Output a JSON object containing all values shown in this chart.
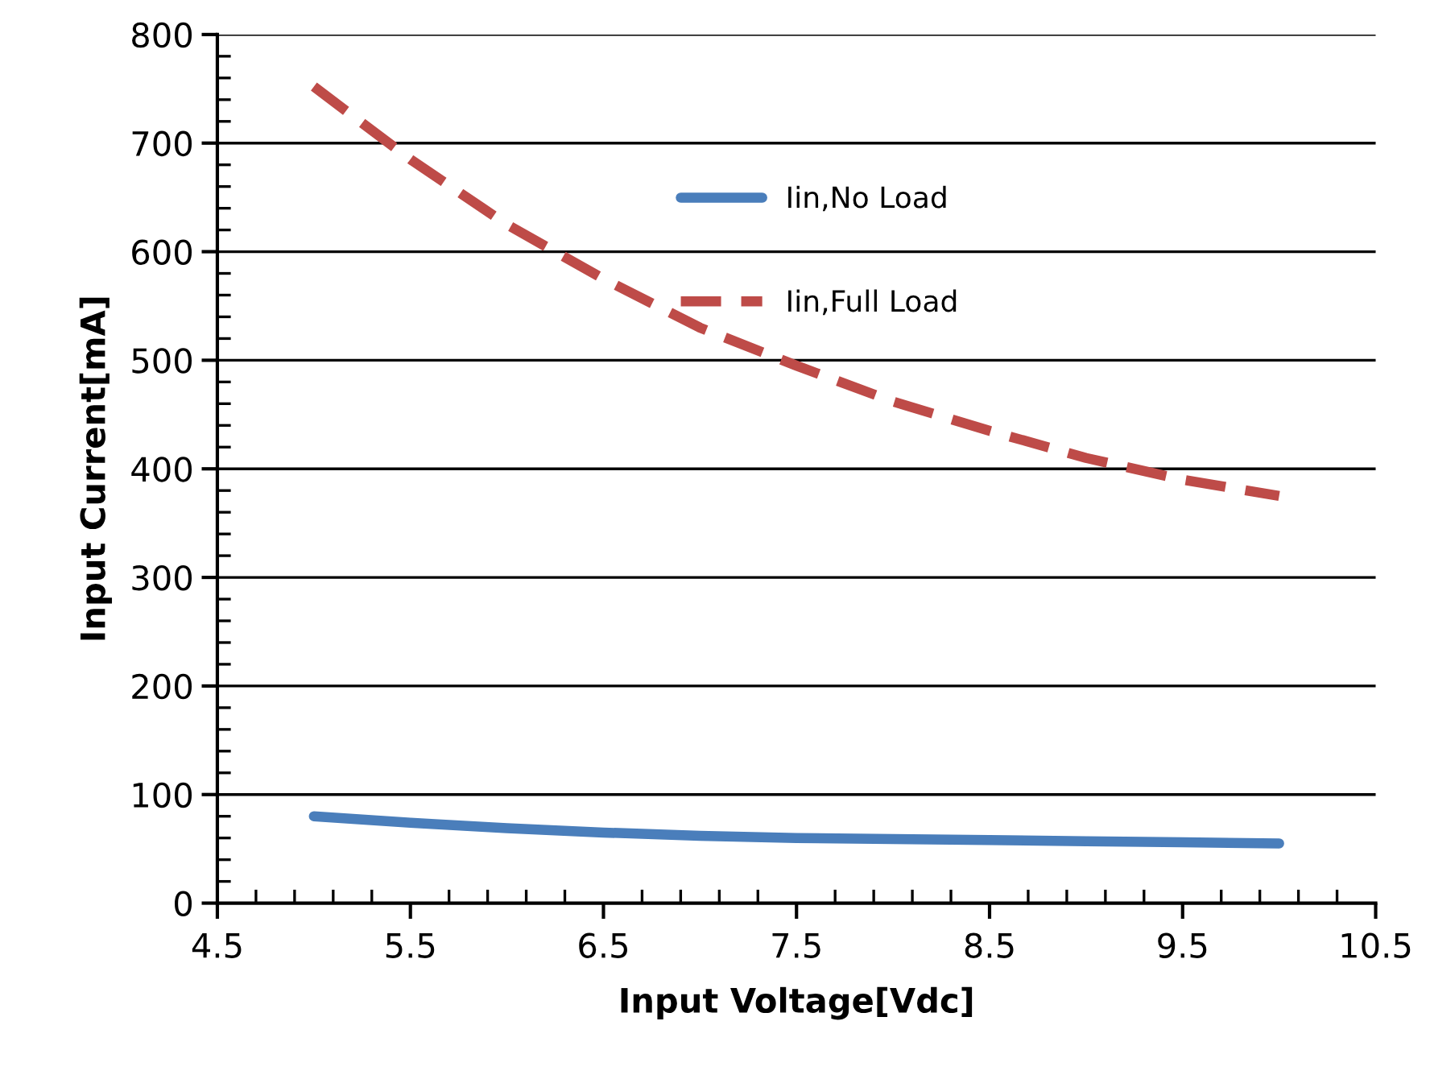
{
  "chart_data": {
    "type": "line",
    "xlabel": "Input Voltage[Vdc]",
    "ylabel": "Input Current[mA]",
    "x": [
      5,
      5.5,
      6,
      6.5,
      7,
      7.5,
      8,
      8.5,
      9,
      9.5,
      10
    ],
    "series": [
      {
        "name": "Iin,No Load",
        "color": "#4a7ebb",
        "line_style": "solid",
        "values": [
          80,
          74,
          69,
          65,
          62,
          60,
          59,
          58,
          57,
          56,
          55
        ]
      },
      {
        "name": "Iin,Full Load",
        "color": "#be4b48",
        "line_style": "dashed",
        "values": [
          752,
          685,
          625,
          575,
          530,
          495,
          462,
          435,
          410,
          390,
          375
        ]
      }
    ],
    "xlim": [
      4.5,
      10.5
    ],
    "xticks": [
      4.5,
      5.5,
      6.5,
      7.5,
      8.5,
      9.5,
      10.5
    ],
    "ylim": [
      0,
      800
    ],
    "yticks": [
      0,
      100,
      200,
      300,
      400,
      500,
      600,
      700,
      800
    ],
    "grid": "y",
    "legend": "center",
    "marker": "none"
  }
}
